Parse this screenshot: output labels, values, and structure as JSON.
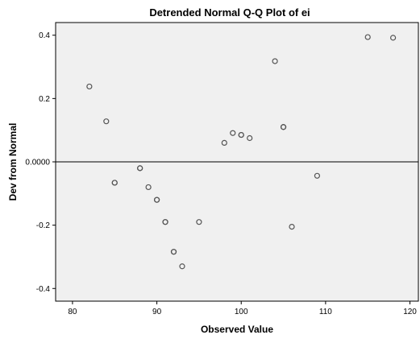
{
  "chart_data": {
    "type": "scatter",
    "title": "Detrended Normal Q-Q Plot of ei",
    "xlabel": "Observed Value",
    "ylabel": "Dev from Normal",
    "xlim": [
      78,
      121
    ],
    "ylim": [
      -0.44,
      0.44
    ],
    "x_ticks": [
      80,
      90,
      100,
      110,
      120
    ],
    "x_tick_labels": [
      "80",
      "90",
      "100",
      "110",
      "120"
    ],
    "y_ticks": [
      -0.4,
      -0.2,
      0.0,
      0.2,
      0.4
    ],
    "y_tick_labels": [
      "-0.4",
      "-0.2",
      "0.0000",
      "0.2",
      "0.4"
    ],
    "reference_line_y": 0,
    "grid": false,
    "plot_background": "#f0f0f0",
    "marker_color": "#555555",
    "points": [
      {
        "x": 82,
        "y": 0.238
      },
      {
        "x": 84,
        "y": 0.128
      },
      {
        "x": 85,
        "y": -0.066
      },
      {
        "x": 85,
        "y": -0.066
      },
      {
        "x": 88,
        "y": -0.02
      },
      {
        "x": 88,
        "y": -0.02
      },
      {
        "x": 89,
        "y": -0.08
      },
      {
        "x": 90,
        "y": -0.12
      },
      {
        "x": 90,
        "y": -0.12
      },
      {
        "x": 91,
        "y": -0.19
      },
      {
        "x": 91,
        "y": -0.19
      },
      {
        "x": 92,
        "y": -0.284
      },
      {
        "x": 92,
        "y": -0.284
      },
      {
        "x": 93,
        "y": -0.33
      },
      {
        "x": 95,
        "y": -0.19
      },
      {
        "x": 98,
        "y": 0.06
      },
      {
        "x": 99,
        "y": 0.091
      },
      {
        "x": 100,
        "y": 0.085
      },
      {
        "x": 100,
        "y": 0.085
      },
      {
        "x": 101,
        "y": 0.075
      },
      {
        "x": 104,
        "y": 0.318
      },
      {
        "x": 105,
        "y": 0.11
      },
      {
        "x": 105,
        "y": 0.11
      },
      {
        "x": 105,
        "y": 0.11
      },
      {
        "x": 106,
        "y": -0.205
      },
      {
        "x": 109,
        "y": -0.044
      },
      {
        "x": 115,
        "y": 0.394
      },
      {
        "x": 118,
        "y": 0.392
      }
    ]
  }
}
